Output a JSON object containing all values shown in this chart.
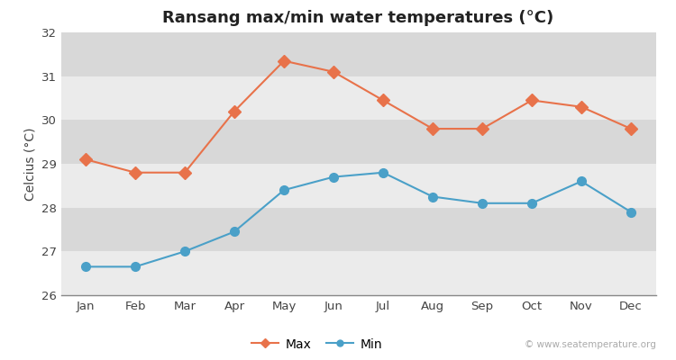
{
  "title": "Ransang max/min water temperatures (°C)",
  "ylabel": "Celcius (°C)",
  "months": [
    "Jan",
    "Feb",
    "Mar",
    "Apr",
    "May",
    "Jun",
    "Jul",
    "Aug",
    "Sep",
    "Oct",
    "Nov",
    "Dec"
  ],
  "max_temps": [
    29.1,
    28.8,
    28.8,
    30.2,
    31.35,
    31.1,
    30.45,
    29.8,
    29.8,
    30.45,
    30.3,
    29.8
  ],
  "min_temps": [
    26.65,
    26.65,
    27.0,
    27.45,
    28.4,
    28.7,
    28.8,
    28.25,
    28.1,
    28.1,
    28.6,
    27.9
  ],
  "max_color": "#e8724a",
  "min_color": "#4aa0c8",
  "figure_bg": "#ffffff",
  "band_light": "#ebebeb",
  "band_dark": "#d8d8d8",
  "ylim": [
    26,
    32
  ],
  "yticks": [
    26,
    27,
    28,
    29,
    30,
    31,
    32
  ],
  "watermark": "© www.seatemperature.org",
  "legend_labels": [
    "Max",
    "Min"
  ],
  "title_fontsize": 13,
  "axis_label_fontsize": 10,
  "tick_fontsize": 9.5,
  "legend_fontsize": 10
}
